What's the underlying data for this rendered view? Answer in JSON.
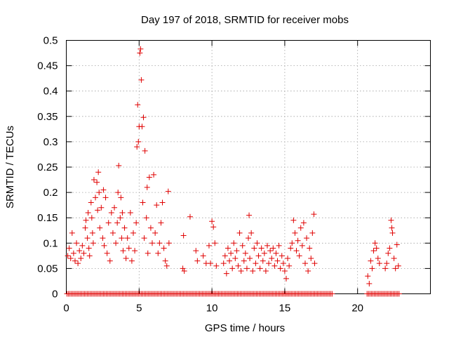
{
  "chart_data": {
    "type": "scatter",
    "title": "Day 197 of 2018, SRMTID for receiver mobs",
    "xlabel": "GPS time / hours",
    "ylabel": "SRMTID / TECUs",
    "xlim": [
      0,
      25
    ],
    "ylim": [
      0,
      0.5
    ],
    "xticks": [
      0,
      5,
      10,
      15,
      20
    ],
    "xtick_labels": [
      "0",
      "5",
      "10",
      "15",
      "20"
    ],
    "yticks": [
      0,
      0.05,
      0.1,
      0.15,
      0.2,
      0.25,
      0.3,
      0.35,
      0.4,
      0.45,
      0.5
    ],
    "ytick_labels": [
      "0",
      "0.05",
      "0.1",
      "0.15",
      "0.2",
      "0.25",
      "0.3",
      "0.35",
      "0.4",
      "0.45",
      "0.5"
    ],
    "grid": true,
    "marker": "+",
    "marker_color": "#e00000",
    "series": [
      {
        "name": "SRMTID",
        "points": [
          [
            0.1,
            0.075
          ],
          [
            0.2,
            0.09
          ],
          [
            0.3,
            0.07
          ],
          [
            0.4,
            0.12
          ],
          [
            0.5,
            0.08
          ],
          [
            0.6,
            0.065
          ],
          [
            0.7,
            0.1
          ],
          [
            0.8,
            0.06
          ],
          [
            0.9,
            0.085
          ],
          [
            1.0,
            0.07
          ],
          [
            1.1,
            0.095
          ],
          [
            1.2,
            0.08
          ],
          [
            1.3,
            0.13
          ],
          [
            1.35,
            0.145
          ],
          [
            1.45,
            0.11
          ],
          [
            1.5,
            0.16
          ],
          [
            1.55,
            0.09
          ],
          [
            1.6,
            0.075
          ],
          [
            1.7,
            0.18
          ],
          [
            1.75,
            0.15
          ],
          [
            1.8,
            0.12
          ],
          [
            1.85,
            0.1
          ],
          [
            1.9,
            0.225
          ],
          [
            2.0,
            0.19
          ],
          [
            2.1,
            0.22
          ],
          [
            2.15,
            0.165
          ],
          [
            2.2,
            0.24
          ],
          [
            2.25,
            0.2
          ],
          [
            2.3,
            0.13
          ],
          [
            2.4,
            0.17
          ],
          [
            2.5,
            0.11
          ],
          [
            2.55,
            0.205
          ],
          [
            2.6,
            0.095
          ],
          [
            2.7,
            0.19
          ],
          [
            2.8,
            0.08
          ],
          [
            2.9,
            0.14
          ],
          [
            3.0,
            0.065
          ],
          [
            3.1,
            0.16
          ],
          [
            3.2,
            0.12
          ],
          [
            3.3,
            0.17
          ],
          [
            3.4,
            0.1
          ],
          [
            3.5,
            0.14
          ],
          [
            3.55,
            0.2
          ],
          [
            3.6,
            0.253
          ],
          [
            3.7,
            0.15
          ],
          [
            3.75,
            0.19
          ],
          [
            3.8,
            0.11
          ],
          [
            3.85,
            0.16
          ],
          [
            3.9,
            0.085
          ],
          [
            4.0,
            0.13
          ],
          [
            4.1,
            0.07
          ],
          [
            4.2,
            0.11
          ],
          [
            4.3,
            0.09
          ],
          [
            4.4,
            0.16
          ],
          [
            4.5,
            0.065
          ],
          [
            4.6,
            0.12
          ],
          [
            4.7,
            0.085
          ],
          [
            4.8,
            0.14
          ],
          [
            4.85,
            0.29
          ],
          [
            4.9,
            0.373
          ],
          [
            4.95,
            0.3
          ],
          [
            5.0,
            0.33
          ],
          [
            5.05,
            0.475
          ],
          [
            5.1,
            0.483
          ],
          [
            5.15,
            0.422
          ],
          [
            5.2,
            0.33
          ],
          [
            5.25,
            0.18
          ],
          [
            5.3,
            0.348
          ],
          [
            5.35,
            0.11
          ],
          [
            5.4,
            0.282
          ],
          [
            5.5,
            0.15
          ],
          [
            5.55,
            0.21
          ],
          [
            5.6,
            0.08
          ],
          [
            5.7,
            0.23
          ],
          [
            5.8,
            0.13
          ],
          [
            5.9,
            0.1
          ],
          [
            6.0,
            0.235
          ],
          [
            6.1,
            0.12
          ],
          [
            6.2,
            0.175
          ],
          [
            6.3,
            0.08
          ],
          [
            6.4,
            0.1
          ],
          [
            6.5,
            0.14
          ],
          [
            6.6,
            0.18
          ],
          [
            6.7,
            0.09
          ],
          [
            6.8,
            0.065
          ],
          [
            6.9,
            0.055
          ],
          [
            7.0,
            0.202
          ],
          [
            7.05,
            0.1
          ],
          [
            8.0,
            0.05
          ],
          [
            8.05,
            0.115
          ],
          [
            8.1,
            0.045
          ],
          [
            8.5,
            0.152
          ],
          [
            8.9,
            0.085
          ],
          [
            9.0,
            0.065
          ],
          [
            9.4,
            0.075
          ],
          [
            9.6,
            0.06
          ],
          [
            9.8,
            0.095
          ],
          [
            9.9,
            0.06
          ],
          [
            10.0,
            0.143
          ],
          [
            10.1,
            0.132
          ],
          [
            10.2,
            0.1
          ],
          [
            10.3,
            0.055
          ],
          [
            10.8,
            0.06
          ],
          [
            10.9,
            0.075
          ],
          [
            11.0,
            0.04
          ],
          [
            11.1,
            0.09
          ],
          [
            11.2,
            0.065
          ],
          [
            11.3,
            0.08
          ],
          [
            11.4,
            0.05
          ],
          [
            11.5,
            0.1
          ],
          [
            11.6,
            0.07
          ],
          [
            11.7,
            0.085
          ],
          [
            11.8,
            0.055
          ],
          [
            11.9,
            0.12
          ],
          [
            12.0,
            0.045
          ],
          [
            12.1,
            0.095
          ],
          [
            12.2,
            0.065
          ],
          [
            12.3,
            0.08
          ],
          [
            12.4,
            0.05
          ],
          [
            12.5,
            0.11
          ],
          [
            12.55,
            0.155
          ],
          [
            12.6,
            0.07
          ],
          [
            12.7,
            0.12
          ],
          [
            12.8,
            0.045
          ],
          [
            12.9,
            0.09
          ],
          [
            13.0,
            0.06
          ],
          [
            13.1,
            0.1
          ],
          [
            13.2,
            0.075
          ],
          [
            13.3,
            0.05
          ],
          [
            13.4,
            0.09
          ],
          [
            13.5,
            0.065
          ],
          [
            13.6,
            0.08
          ],
          [
            13.7,
            0.045
          ],
          [
            13.8,
            0.095
          ],
          [
            13.9,
            0.06
          ],
          [
            14.0,
            0.085
          ],
          [
            14.1,
            0.07
          ],
          [
            14.2,
            0.09
          ],
          [
            14.3,
            0.055
          ],
          [
            14.4,
            0.08
          ],
          [
            14.5,
            0.065
          ],
          [
            14.6,
            0.095
          ],
          [
            14.7,
            0.05
          ],
          [
            14.8,
            0.075
          ],
          [
            14.9,
            0.06
          ],
          [
            15.0,
            0.045
          ],
          [
            15.1,
            0.03
          ],
          [
            15.2,
            0.07
          ],
          [
            15.3,
            0.055
          ],
          [
            15.4,
            0.09
          ],
          [
            15.5,
            0.1
          ],
          [
            15.6,
            0.145
          ],
          [
            15.7,
            0.12
          ],
          [
            15.8,
            0.085
          ],
          [
            15.9,
            0.105
          ],
          [
            16.0,
            0.075
          ],
          [
            16.1,
            0.13
          ],
          [
            16.2,
            0.095
          ],
          [
            16.3,
            0.14
          ],
          [
            16.4,
            0.06
          ],
          [
            16.5,
            0.11
          ],
          [
            16.6,
            0.045
          ],
          [
            16.7,
            0.09
          ],
          [
            16.8,
            0.07
          ],
          [
            16.9,
            0.12
          ],
          [
            17.0,
            0.157
          ],
          [
            17.05,
            0.06
          ],
          [
            20.7,
            0.035
          ],
          [
            20.8,
            0.02
          ],
          [
            20.9,
            0.065
          ],
          [
            21.0,
            0.05
          ],
          [
            21.1,
            0.085
          ],
          [
            21.2,
            0.1
          ],
          [
            21.3,
            0.09
          ],
          [
            21.4,
            0.07
          ],
          [
            21.5,
            0.06
          ],
          [
            21.9,
            0.05
          ],
          [
            22.0,
            0.06
          ],
          [
            22.1,
            0.08
          ],
          [
            22.2,
            0.09
          ],
          [
            22.3,
            0.145
          ],
          [
            22.35,
            0.13
          ],
          [
            22.4,
            0.12
          ],
          [
            22.5,
            0.07
          ],
          [
            22.6,
            0.05
          ],
          [
            22.7,
            0.097
          ],
          [
            22.8,
            0.055
          ]
        ],
        "zero_ranges": [
          [
            0.05,
            18.3
          ],
          [
            20.65,
            22.85
          ]
        ]
      }
    ]
  }
}
